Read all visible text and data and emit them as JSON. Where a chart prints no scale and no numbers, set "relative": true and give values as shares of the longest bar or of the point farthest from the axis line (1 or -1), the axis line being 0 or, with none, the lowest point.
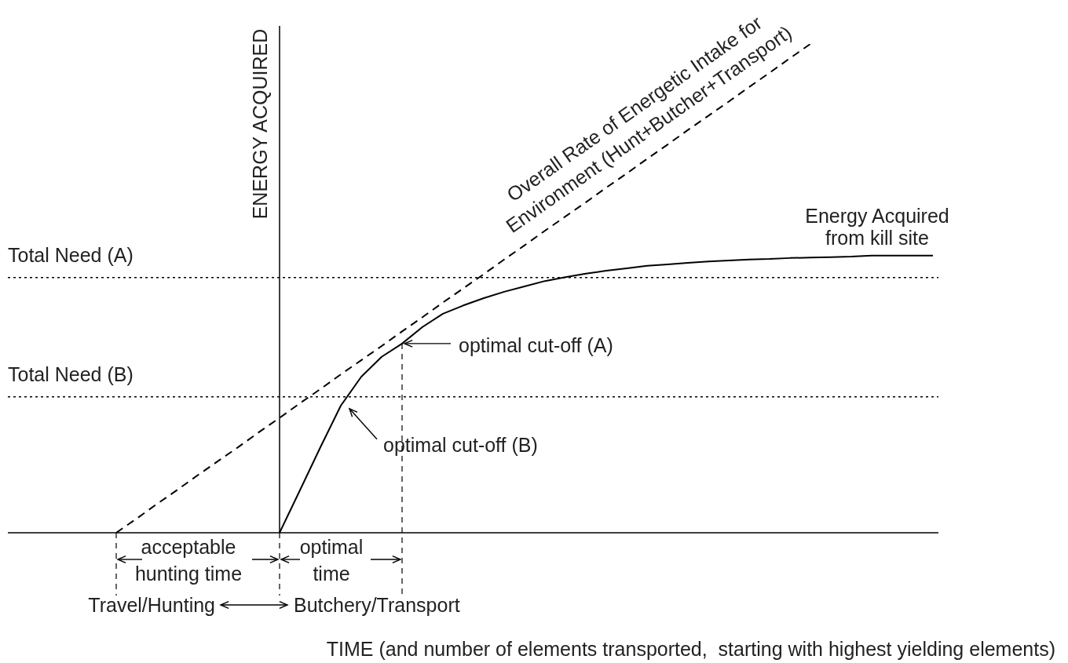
{
  "chart_data": {
    "type": "line",
    "relative": true,
    "marker": "none",
    "ylabel": "ENERGY ACQUIRED",
    "categories": [
      null,
      null,
      null,
      null,
      null,
      null,
      null,
      null,
      null,
      null,
      null,
      null,
      null,
      null,
      null,
      null,
      null,
      null,
      null,
      null,
      null,
      null,
      null,
      null,
      null,
      null,
      null,
      null,
      null,
      null,
      null,
      null,
      null,
      null,
      null,
      null,
      null,
      null,
      null,
      null,
      null,
      null,
      null,
      null,
      null,
      null
    ],
    "series": [
      {
        "name": "Energy Acquired from kill site",
        "color": "#000000",
        "line_style": "solid",
        "values": [
          null,
          null,
          null,
          null,
          null,
          null,
          null,
          null,
          null,
          null,
          null,
          null,
          null,
          0,
          0.087,
          0.175,
          0.26,
          0.319,
          0.36,
          0.387,
          0.421,
          0.448,
          0.465,
          0.48,
          0.493,
          0.504,
          0.515,
          0.523,
          0.53,
          0.536,
          0.541,
          0.546,
          0.549,
          0.552,
          0.555,
          0.557,
          0.559,
          0.56,
          0.562,
          0.563,
          0.564,
          0.565,
          0.567,
          0.567,
          0.567,
          0.567
        ]
      },
      {
        "name": "Overall Rate of Energetic Intake for Environment (Hunt+Butcher+Transport)",
        "color": "#000000",
        "line_style": "dashed",
        "values": [
          null,
          null,
          null,
          null,
          null,
          0,
          0.029,
          0.059,
          0.088,
          0.118,
          0.147,
          0.176,
          0.206,
          0.235,
          0.265,
          0.294,
          0.324,
          0.353,
          0.382,
          0.412,
          0.441,
          0.471,
          0.5,
          0.529,
          0.559,
          0.588,
          0.618,
          0.647,
          0.676,
          0.706,
          0.735,
          0.765,
          0.794,
          0.824,
          0.853,
          0.882,
          0.912,
          0.941,
          0.971,
          1,
          null,
          null,
          null,
          null,
          null,
          null
        ]
      }
    ],
    "ref_lines": [
      {
        "axis": "y",
        "value": 0.522,
        "label": "Total Need (A)",
        "line_style": "dotted",
        "color": "#000000"
      },
      {
        "axis": "y",
        "value": 0.278,
        "label": "Total Need (B)",
        "line_style": "dotted",
        "color": "#000000"
      }
    ],
    "annotations": [
      "optimal cut-off (A)",
      "optimal cut-off (B)",
      "acceptable hunting time",
      "optimal time",
      "Travel/Hunting",
      "Butchery/Transport",
      "TIME (and number of elements transported,  starting with highest yielding elements)"
    ]
  }
}
